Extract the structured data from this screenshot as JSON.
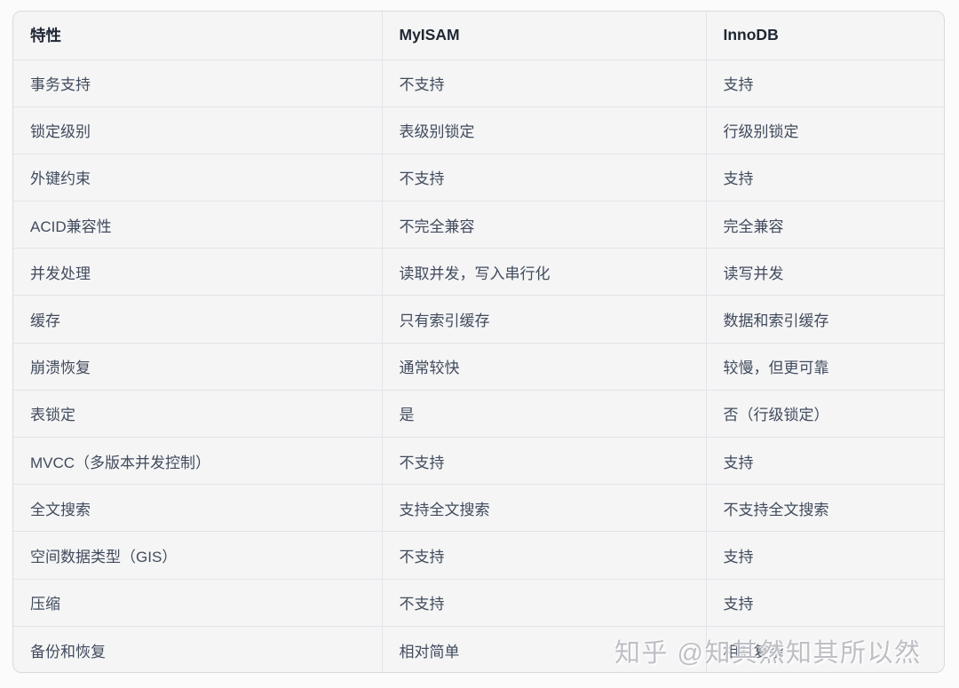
{
  "table": {
    "columns": [
      {
        "label": "特性"
      },
      {
        "label": "MyISAM"
      },
      {
        "label": "InnoDB"
      }
    ],
    "rows": [
      {
        "feature": "事务支持",
        "myisam": "不支持",
        "innodb": "支持"
      },
      {
        "feature": "锁定级别",
        "myisam": "表级别锁定",
        "innodb": "行级别锁定"
      },
      {
        "feature": "外键约束",
        "myisam": "不支持",
        "innodb": "支持"
      },
      {
        "feature": "ACID兼容性",
        "myisam": "不完全兼容",
        "innodb": "完全兼容"
      },
      {
        "feature": "并发处理",
        "myisam": "读取并发，写入串行化",
        "innodb": "读写并发"
      },
      {
        "feature": "缓存",
        "myisam": "只有索引缓存",
        "innodb": "数据和索引缓存"
      },
      {
        "feature": "崩溃恢复",
        "myisam": "通常较快",
        "innodb": "较慢，但更可靠"
      },
      {
        "feature": "表锁定",
        "myisam": "是",
        "innodb": "否（行级锁定）"
      },
      {
        "feature": "MVCC（多版本并发控制）",
        "myisam": "不支持",
        "innodb": "支持"
      },
      {
        "feature": "全文搜索",
        "myisam": "支持全文搜索",
        "innodb": "不支持全文搜索"
      },
      {
        "feature": "空间数据类型（GIS）",
        "myisam": "不支持",
        "innodb": "支持"
      },
      {
        "feature": "压缩",
        "myisam": "不支持",
        "innodb": "支持"
      },
      {
        "feature": "备份和恢复",
        "myisam": "相对简单",
        "innodb": "相对复杂"
      }
    ]
  },
  "watermark": {
    "text": "知乎 @知其然知其所以然"
  },
  "colors": {
    "page_bg": "#fbfbfc",
    "table_bg": "#f5f5f6",
    "outer_border": "#d8dade",
    "inner_border": "#e2e4e8",
    "header_text": "#1f2633",
    "cell_text": "#414b5c",
    "watermark_text": "#babcc1"
  }
}
